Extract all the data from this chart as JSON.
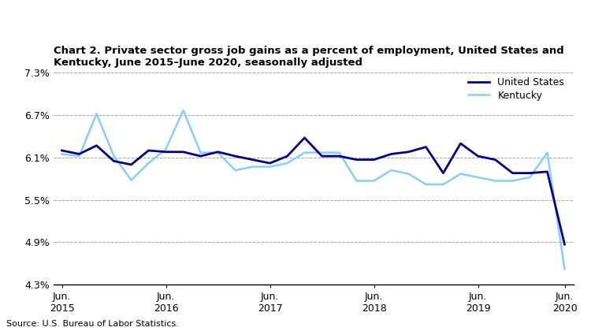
{
  "title": "Chart 2. Private sector gross job gains as a percent of employment, United States and\nKentucky, June 2015–June 2020, seasonally adjusted",
  "source": "Source: U.S. Bureau of Labor Statistics.",
  "us_data": [
    6.2,
    6.15,
    6.27,
    6.05,
    6.0,
    6.2,
    6.18,
    6.18,
    6.12,
    6.18,
    6.12,
    6.07,
    6.02,
    6.12,
    6.38,
    6.12,
    6.12,
    6.07,
    6.07,
    6.15,
    6.18,
    6.25,
    5.88,
    6.3,
    6.12,
    6.07,
    5.88,
    5.88,
    5.9,
    4.87
  ],
  "ky_data": [
    6.15,
    6.12,
    6.72,
    6.12,
    5.78,
    6.02,
    6.22,
    6.77,
    6.17,
    6.17,
    5.92,
    5.97,
    5.97,
    6.02,
    6.17,
    6.17,
    6.17,
    5.77,
    5.77,
    5.92,
    5.87,
    5.72,
    5.72,
    5.87,
    5.82,
    5.77,
    5.77,
    5.82,
    6.17,
    4.52
  ],
  "us_color": "#00008B",
  "ky_color": "#87CEFA",
  "ylim": [
    4.3,
    7.3
  ],
  "yticks": [
    4.3,
    4.9,
    5.5,
    6.1,
    6.7,
    7.3
  ],
  "jun_positions": [
    0,
    6,
    12,
    18,
    24,
    29
  ],
  "jun_labels": [
    "Jun.\n2015",
    "Jun.\n2016",
    "Jun.\n2017",
    "Jun.\n2018",
    "Jun.\n2019",
    "Jun.\n2020"
  ],
  "n_points": 30,
  "us_label": "United States",
  "ky_label": "Kentucky"
}
